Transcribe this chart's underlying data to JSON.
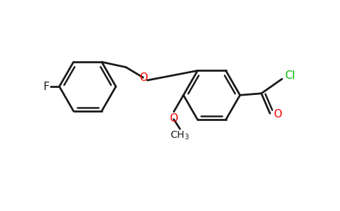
{
  "bg_color": "#ffffff",
  "bond_color": "#1a1a1a",
  "O_color": "#ff0000",
  "Cl_color": "#00bb00",
  "F_color": "#1a1a1a",
  "lw": 2.0,
  "fig_width": 4.84,
  "fig_height": 3.0,
  "dpi": 100,
  "xlim": [
    0,
    9.68
  ],
  "ylim": [
    0,
    6.0
  ]
}
